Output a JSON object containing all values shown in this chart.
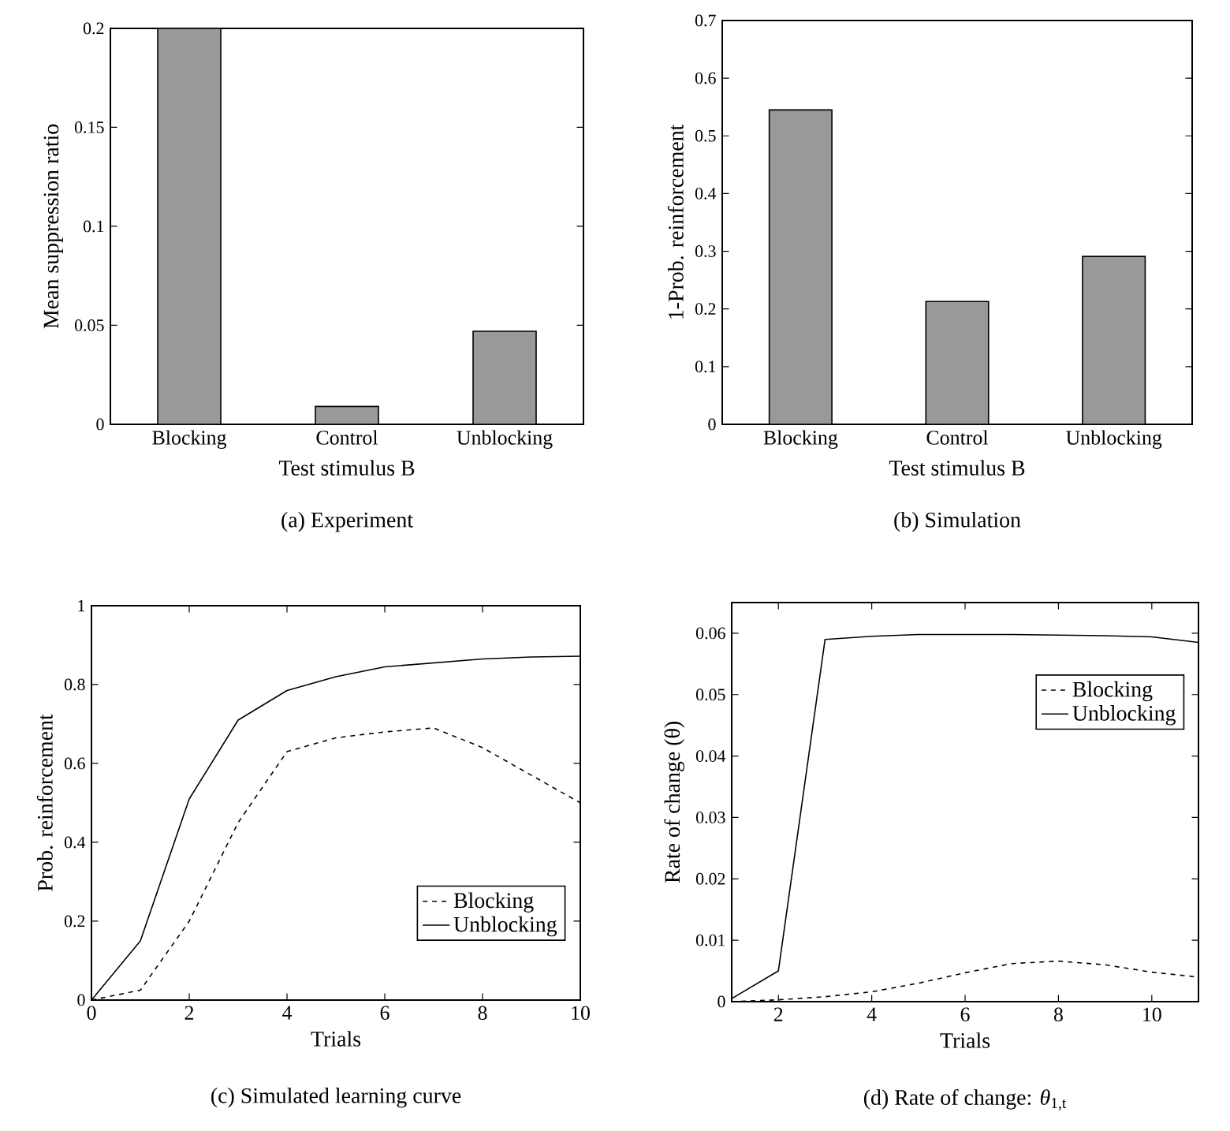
{
  "chart_data": [
    {
      "type": "bar",
      "xlabel": "Test stimulus B",
      "ylabel": "Mean suppression ratio",
      "categories": [
        "Blocking",
        "Control",
        "Unblocking"
      ],
      "values": [
        0.2,
        0.009,
        0.047
      ],
      "color": "#999999",
      "ylim": [
        0,
        0.2
      ],
      "yticks": [
        0,
        0.05,
        0.1,
        0.15,
        0.2
      ],
      "annotations": [
        "(a) Experiment"
      ]
    },
    {
      "type": "bar",
      "xlabel": "Test stimulus B",
      "ylabel": "1-Prob. reinforcement",
      "categories": [
        "Blocking",
        "Control",
        "Unblocking"
      ],
      "values": [
        0.545,
        0.213,
        0.291
      ],
      "color": "#999999",
      "ylim": [
        0,
        0.7
      ],
      "yticks": [
        0,
        0.1,
        0.2,
        0.3,
        0.4,
        0.5,
        0.6,
        0.7
      ],
      "annotations": [
        "(b) Simulation"
      ]
    },
    {
      "type": "line",
      "xlabel": "Trials",
      "ylabel": "Prob. reinforcement",
      "x": [
        0,
        1,
        2,
        3,
        4,
        5,
        6,
        7,
        8,
        9,
        10
      ],
      "xlim": [
        0,
        10
      ],
      "xticks": [
        0,
        2,
        4,
        6,
        8,
        10
      ],
      "ylim": [
        0,
        1
      ],
      "yticks": [
        0,
        0.2,
        0.4,
        0.6,
        0.8,
        1
      ],
      "legend": "bottom right",
      "annotations": [
        "(c) Simulated learning curve"
      ],
      "series": [
        {
          "name": "Blocking",
          "color": "#000000",
          "line_style": "dashed",
          "values": [
            0,
            0.025,
            0.2,
            0.45,
            0.63,
            0.665,
            0.68,
            0.69,
            0.64,
            0.57,
            0.5
          ]
        },
        {
          "name": "Unblocking",
          "color": "#000000",
          "line_style": "solid",
          "values": [
            0,
            0.15,
            0.51,
            0.71,
            0.785,
            0.82,
            0.845,
            0.855,
            0.865,
            0.87,
            0.872
          ]
        }
      ]
    },
    {
      "type": "line",
      "xlabel": "Trials",
      "ylabel": "Rate of change (θ)",
      "x": [
        1,
        2,
        3,
        4,
        5,
        6,
        7,
        8,
        9,
        10,
        11
      ],
      "xlim": [
        1,
        11
      ],
      "xticks": [
        2,
        4,
        6,
        8,
        10
      ],
      "ylim": [
        0,
        0.065
      ],
      "yticks": [
        0,
        0.01,
        0.02,
        0.03,
        0.04,
        0.05,
        0.06
      ],
      "legend": "top right",
      "annotations": [
        "(d) Rate of change: *θ*$_{1,t}$"
      ],
      "series": [
        {
          "name": "Blocking",
          "color": "#000000",
          "line_style": "dashed",
          "values": [
            0,
            0.0003,
            0.0008,
            0.0016,
            0.003,
            0.0047,
            0.0062,
            0.0066,
            0.006,
            0.0048,
            0.004
          ]
        },
        {
          "name": "Unblocking",
          "color": "#000000",
          "line_style": "solid",
          "values": [
            0.0005,
            0.005,
            0.059,
            0.0595,
            0.0598,
            0.0598,
            0.0598,
            0.0597,
            0.0596,
            0.0594,
            0.0585
          ]
        }
      ]
    }
  ]
}
